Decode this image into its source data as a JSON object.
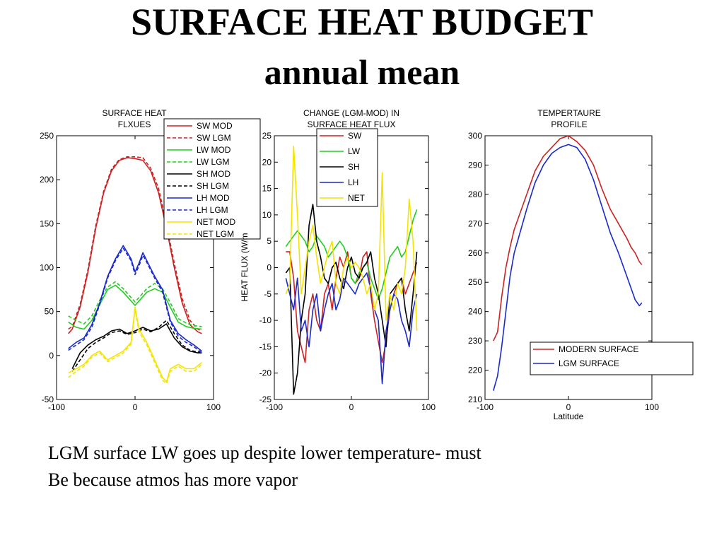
{
  "slide": {
    "title": "SURFACE HEAT BUDGET",
    "subtitle": "annual mean",
    "caption_lines": [
      "LGM surface LW goes up despite lower temperature- must",
      "Be because atmos has more vapor"
    ]
  },
  "chart_data": [
    {
      "type": "line",
      "title": [
        "SURFACE HEAT",
        "FLXUES"
      ],
      "xlabel": "",
      "ylabel": "",
      "xlim": [
        -100,
        100
      ],
      "ylim": [
        -50,
        250
      ],
      "xticks": [
        -100,
        0,
        100
      ],
      "yticks": [
        -50,
        0,
        50,
        100,
        150,
        200,
        250
      ],
      "legend_position": "top-right",
      "series": [
        {
          "name": "SW MOD",
          "color": "#cc2222",
          "dash": false,
          "x": [
            -85,
            -80,
            -70,
            -60,
            -50,
            -40,
            -30,
            -20,
            -10,
            0,
            10,
            20,
            30,
            40,
            50,
            60,
            70,
            80,
            85
          ],
          "y": [
            25,
            30,
            55,
            95,
            145,
            185,
            210,
            222,
            225,
            224,
            222,
            210,
            185,
            145,
            100,
            60,
            35,
            27,
            25
          ]
        },
        {
          "name": "SW LGM",
          "color": "#cc2222",
          "dash": true,
          "x": [
            -85,
            -80,
            -70,
            -60,
            -50,
            -40,
            -30,
            -20,
            -10,
            0,
            10,
            20,
            30,
            40,
            50,
            60,
            70,
            80,
            85
          ],
          "y": [
            30,
            33,
            58,
            98,
            148,
            187,
            212,
            223,
            226,
            226,
            225,
            213,
            190,
            150,
            105,
            65,
            40,
            30,
            28
          ]
        },
        {
          "name": "LW MOD",
          "color": "#22cc22",
          "dash": false,
          "x": [
            -85,
            -75,
            -65,
            -55,
            -45,
            -35,
            -25,
            -15,
            -5,
            0,
            5,
            15,
            25,
            35,
            45,
            55,
            65,
            75,
            85
          ],
          "y": [
            38,
            32,
            30,
            40,
            58,
            75,
            80,
            72,
            62,
            57,
            62,
            72,
            76,
            72,
            55,
            38,
            33,
            31,
            30
          ]
        },
        {
          "name": "LW LGM",
          "color": "#22cc22",
          "dash": true,
          "x": [
            -85,
            -75,
            -65,
            -55,
            -45,
            -35,
            -25,
            -15,
            -5,
            0,
            5,
            15,
            25,
            35,
            45,
            55,
            65,
            75,
            85
          ],
          "y": [
            45,
            40,
            36,
            45,
            63,
            78,
            84,
            76,
            66,
            61,
            66,
            76,
            82,
            76,
            60,
            42,
            37,
            34,
            33
          ]
        },
        {
          "name": "SH MOD",
          "color": "#000000",
          "dash": false,
          "x": [
            -80,
            -70,
            -60,
            -50,
            -40,
            -30,
            -20,
            -10,
            0,
            10,
            20,
            30,
            40,
            50,
            60,
            70,
            80,
            85
          ],
          "y": [
            -15,
            3,
            12,
            18,
            22,
            28,
            30,
            25,
            28,
            32,
            28,
            30,
            36,
            20,
            10,
            5,
            3,
            3
          ]
        },
        {
          "name": "SH LGM",
          "color": "#000000",
          "dash": true,
          "x": [
            -80,
            -70,
            -60,
            -50,
            -40,
            -30,
            -20,
            -10,
            0,
            10,
            20,
            30,
            40,
            50,
            60,
            70,
            80,
            85
          ],
          "y": [
            -18,
            -5,
            8,
            15,
            20,
            26,
            28,
            24,
            26,
            30,
            27,
            32,
            40,
            25,
            12,
            6,
            4,
            4
          ]
        },
        {
          "name": "LH MOD",
          "color": "#1a2acc",
          "dash": false,
          "x": [
            -85,
            -75,
            -65,
            -55,
            -45,
            -35,
            -25,
            -15,
            -5,
            0,
            5,
            10,
            15,
            25,
            35,
            45,
            55,
            65,
            75,
            85
          ],
          "y": [
            8,
            15,
            20,
            35,
            60,
            90,
            110,
            125,
            110,
            95,
            105,
            117,
            108,
            90,
            75,
            40,
            25,
            18,
            12,
            5
          ]
        },
        {
          "name": "LH LGM",
          "color": "#1a2acc",
          "dash": true,
          "x": [
            -85,
            -75,
            -65,
            -55,
            -45,
            -35,
            -25,
            -15,
            -5,
            0,
            5,
            10,
            15,
            25,
            35,
            45,
            55,
            65,
            75,
            85
          ],
          "y": [
            6,
            12,
            18,
            32,
            58,
            88,
            108,
            122,
            108,
            92,
            102,
            114,
            106,
            88,
            72,
            38,
            22,
            15,
            10,
            3
          ]
        },
        {
          "name": "NET MOD",
          "color": "#f5e400",
          "dash": false,
          "x": [
            -85,
            -75,
            -65,
            -55,
            -45,
            -35,
            -25,
            -15,
            -5,
            0,
            5,
            15,
            25,
            30,
            35,
            40,
            45,
            55,
            65,
            75,
            85
          ],
          "y": [
            -20,
            -15,
            -10,
            0,
            5,
            -5,
            0,
            5,
            15,
            55,
            30,
            15,
            -5,
            -15,
            -25,
            -30,
            -15,
            -10,
            -15,
            -15,
            -8
          ]
        },
        {
          "name": "NET LGM",
          "color": "#f5e400",
          "dash": true,
          "x": [
            -85,
            -75,
            -65,
            -55,
            -45,
            -35,
            -25,
            -15,
            -5,
            0,
            5,
            15,
            25,
            30,
            35,
            40,
            45,
            55,
            65,
            75,
            85
          ],
          "y": [
            -25,
            -18,
            -12,
            -2,
            3,
            -7,
            -2,
            3,
            13,
            52,
            27,
            12,
            -8,
            -18,
            -28,
            -32,
            -18,
            -12,
            -18,
            -18,
            -10
          ]
        }
      ]
    },
    {
      "type": "line",
      "title": [
        "CHANGE (LGM-MOD) IN",
        "SURFACE HEAT FLUX"
      ],
      "xlabel": "",
      "ylabel": "HEAT FLUX (W/m",
      "xlim": [
        -100,
        100
      ],
      "ylim": [
        -25,
        25
      ],
      "xticks": [
        -100,
        0,
        100
      ],
      "yticks": [
        -25,
        -20,
        -15,
        -10,
        -5,
        0,
        5,
        10,
        15,
        20,
        25
      ],
      "legend_position": "top-right",
      "series": [
        {
          "name": "SW",
          "color": "#cc2222",
          "dash": false,
          "x": [
            -85,
            -80,
            -75,
            -70,
            -65,
            -60,
            -55,
            -50,
            -45,
            -40,
            -35,
            -30,
            -25,
            -20,
            -15,
            -10,
            -5,
            0,
            5,
            10,
            15,
            20,
            25,
            30,
            35,
            40,
            45,
            50,
            55,
            60,
            65,
            70,
            75,
            80,
            85
          ],
          "y": [
            3,
            3,
            -2,
            -12,
            -15,
            -18,
            -8,
            -5,
            -10,
            -12,
            -5,
            -3,
            -8,
            -2,
            2,
            0,
            3,
            -2,
            -3,
            -2,
            2,
            3,
            -5,
            -10,
            -14,
            -18,
            -14,
            -8,
            -5,
            -3,
            -2,
            -5,
            -3,
            -1,
            1
          ]
        },
        {
          "name": "LW",
          "color": "#22cc22",
          "dash": false,
          "x": [
            -85,
            -80,
            -75,
            -70,
            -65,
            -60,
            -55,
            -50,
            -45,
            -40,
            -35,
            -30,
            -25,
            -20,
            -15,
            -10,
            -5,
            0,
            5,
            10,
            15,
            20,
            25,
            30,
            35,
            40,
            45,
            50,
            55,
            60,
            65,
            70,
            75,
            80,
            85
          ],
          "y": [
            4,
            5,
            6,
            7,
            6,
            5,
            3,
            4,
            6,
            5,
            4,
            2,
            3,
            4,
            5,
            4,
            2,
            -2,
            -3,
            -1,
            0,
            1,
            -2,
            -4,
            -6,
            -4,
            -1,
            2,
            3,
            4,
            2,
            3,
            6,
            9,
            11
          ]
        },
        {
          "name": "SH",
          "color": "#000000",
          "dash": false,
          "x": [
            -85,
            -80,
            -75,
            -70,
            -65,
            -60,
            -55,
            -50,
            -45,
            -40,
            -35,
            -30,
            -25,
            -20,
            -15,
            -10,
            -5,
            0,
            5,
            10,
            15,
            20,
            25,
            30,
            35,
            40,
            45,
            50,
            55,
            60,
            65,
            70,
            75,
            80,
            85
          ],
          "y": [
            -1,
            0,
            -24,
            -20,
            -10,
            -5,
            8,
            12,
            5,
            2,
            -2,
            -3,
            0,
            1,
            -2,
            -4,
            0,
            2,
            -1,
            -2,
            0,
            1,
            3,
            -2,
            -5,
            -10,
            -15,
            -5,
            -4,
            -3,
            -2,
            -8,
            -12,
            -5,
            3
          ]
        },
        {
          "name": "LH",
          "color": "#1a2acc",
          "dash": false,
          "x": [
            -85,
            -80,
            -75,
            -70,
            -65,
            -60,
            -55,
            -50,
            -45,
            -40,
            -35,
            -30,
            -25,
            -20,
            -15,
            -10,
            -5,
            0,
            5,
            10,
            15,
            20,
            25,
            30,
            35,
            40,
            45,
            50,
            55,
            60,
            65,
            70,
            75,
            80,
            85
          ],
          "y": [
            -2,
            -5,
            -8,
            -2,
            -12,
            -10,
            -15,
            -8,
            -5,
            -12,
            -8,
            -5,
            -3,
            -8,
            -6,
            -2,
            -3,
            -4,
            -5,
            -3,
            -2,
            -1,
            -4,
            -8,
            -10,
            -22,
            -12,
            -8,
            -5,
            -6,
            -10,
            -12,
            -15,
            -8,
            -5
          ]
        },
        {
          "name": "NET",
          "color": "#f5e400",
          "dash": false,
          "x": [
            -85,
            -80,
            -75,
            -70,
            -65,
            -60,
            -55,
            -50,
            -45,
            -40,
            -35,
            -30,
            -25,
            -20,
            -15,
            -10,
            -5,
            0,
            5,
            10,
            15,
            20,
            25,
            30,
            35,
            40,
            45,
            50,
            55,
            60,
            65,
            70,
            75,
            80,
            85
          ],
          "y": [
            -5,
            -3,
            23,
            10,
            -5,
            0,
            5,
            8,
            2,
            -3,
            0,
            3,
            5,
            -3,
            -5,
            0,
            2,
            0,
            1,
            0,
            -2,
            -5,
            -3,
            -8,
            -5,
            18,
            -10,
            -5,
            -8,
            -3,
            -5,
            0,
            13,
            5,
            -12
          ]
        }
      ]
    },
    {
      "type": "line",
      "title": [
        "TEMPERTAURE",
        "PROFILE"
      ],
      "xlabel": "Latitude",
      "ylabel": "",
      "xlim": [
        -100,
        100
      ],
      "ylim": [
        210,
        300
      ],
      "xticks": [
        -100,
        0,
        100
      ],
      "yticks": [
        210,
        220,
        230,
        240,
        250,
        260,
        270,
        280,
        290,
        300
      ],
      "legend_position": "bottom-right",
      "series": [
        {
          "name": "MODERN SURFACE",
          "color": "#cc2222",
          "dash": false,
          "x": [
            -90,
            -85,
            -80,
            -75,
            -70,
            -65,
            -60,
            -50,
            -40,
            -30,
            -20,
            -10,
            0,
            10,
            20,
            30,
            40,
            50,
            60,
            70,
            75,
            80,
            85,
            88
          ],
          "y": [
            230,
            233,
            245,
            255,
            262,
            268,
            272,
            280,
            288,
            293,
            296,
            299,
            300,
            298,
            295,
            290,
            282,
            275,
            270,
            265,
            262,
            260,
            257,
            256
          ]
        },
        {
          "name": "LGM SURFACE",
          "color": "#1a2acc",
          "dash": false,
          "x": [
            -90,
            -85,
            -80,
            -75,
            -70,
            -65,
            -60,
            -50,
            -40,
            -30,
            -20,
            -10,
            0,
            10,
            20,
            30,
            40,
            50,
            60,
            70,
            75,
            80,
            85,
            88
          ],
          "y": [
            213,
            218,
            228,
            240,
            252,
            260,
            265,
            275,
            284,
            290,
            294,
            296,
            297,
            296,
            292,
            285,
            276,
            267,
            260,
            252,
            248,
            244,
            242,
            243
          ]
        }
      ]
    }
  ]
}
